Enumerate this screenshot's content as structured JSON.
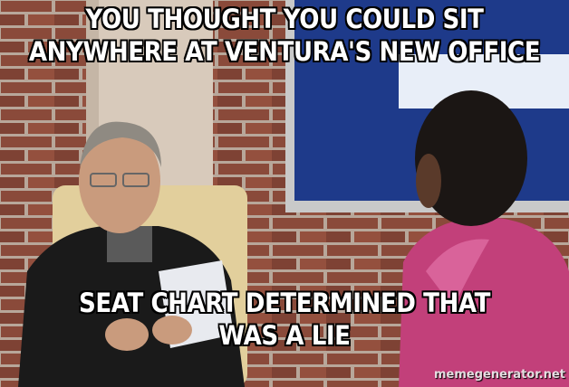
{
  "meme": {
    "top_text": [
      "YOU THOUGHT YOU COULD SIT",
      "ANYWHERE AT VENTURA'S NEW OFFICE"
    ],
    "bottom_text": [
      "SEAT CHART DETERMINED THAT",
      "WAS A LIE"
    ],
    "watermark": "memegenerator.net"
  },
  "colors": {
    "brick": "#8a4a3a",
    "mortar": "#b8a79a",
    "screen": "#1e3a8a",
    "cardigan": "#1a1a1a",
    "blouse": "#c2407a"
  }
}
